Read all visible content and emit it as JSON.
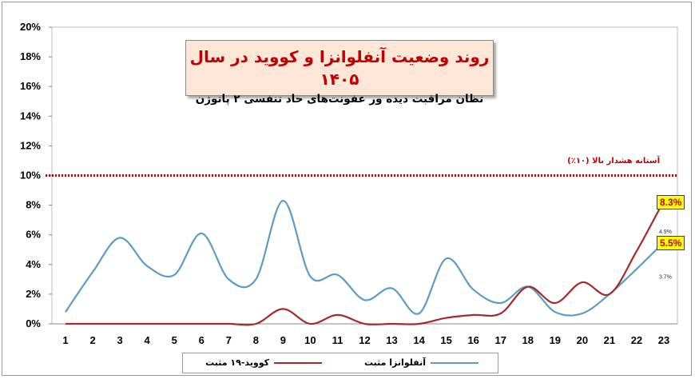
{
  "chart_data": {
    "type": "line",
    "title": "روند وضعیت آنفلوانزا و کووید در سال ۱۴۰۵",
    "subtitle": "نظان مراقبت دیده ور عفونت‌های حاد تنفسی ۲ پاتوژن",
    "x": [
      1,
      2,
      3,
      4,
      5,
      6,
      7,
      8,
      9,
      10,
      11,
      12,
      13,
      14,
      15,
      16,
      17,
      18,
      19,
      20,
      21,
      22,
      23
    ],
    "x_tick_labels": [
      "1",
      "2",
      "3",
      "4",
      "5",
      "6",
      "7",
      "8",
      "9",
      "10",
      "11",
      "12",
      "13",
      "14",
      "15",
      "16",
      "17",
      "18",
      "19",
      "20",
      "21",
      "22",
      "23"
    ],
    "ylim": [
      0,
      20
    ],
    "y_tick_labels": [
      "0%",
      "2%",
      "4%",
      "6%",
      "8%",
      "10%",
      "12%",
      "14%",
      "16%",
      "18%",
      "20%"
    ],
    "y_ticks": [
      0,
      2,
      4,
      6,
      8,
      10,
      12,
      14,
      16,
      18,
      20
    ],
    "grid": false,
    "legend_placement": "bottom",
    "series": [
      {
        "name": "آنفلوانزا مثبت",
        "color": "#5b9bc8",
        "values": [
          0.8,
          3.5,
          5.8,
          3.9,
          3.3,
          6.1,
          3.0,
          3.0,
          8.3,
          3.2,
          3.3,
          1.6,
          2.4,
          0.7,
          4.4,
          2.3,
          1.4,
          2.5,
          0.8,
          0.7,
          2.0,
          3.7,
          5.5
        ]
      },
      {
        "name": "کووید-۱۹ مثبت",
        "color": "#a52a2a",
        "values": [
          0.0,
          0.0,
          0.0,
          0.0,
          0.0,
          0.0,
          0.0,
          0.0,
          1.0,
          0.0,
          0.6,
          0.0,
          0.0,
          0.0,
          0.4,
          0.6,
          0.7,
          2.5,
          1.4,
          2.8,
          2.0,
          4.9,
          8.3
        ]
      }
    ],
    "threshold": {
      "value": 10,
      "label": "آستانه هشدار بالا (۱۰٪)",
      "color": "#c00000"
    },
    "annotations": [
      {
        "text": "8.3%",
        "x": 23,
        "series": "کووید-۱۹ مثبت"
      },
      {
        "text": "5.5%",
        "x": 23,
        "series": "آنفلوانزا مثبت"
      },
      {
        "text": "4.9%",
        "x": 22,
        "series": "کووید-۱۹ مثبت"
      },
      {
        "text": "3.7%",
        "x": 22,
        "series": "آنفلوانزا مثبت"
      }
    ]
  }
}
